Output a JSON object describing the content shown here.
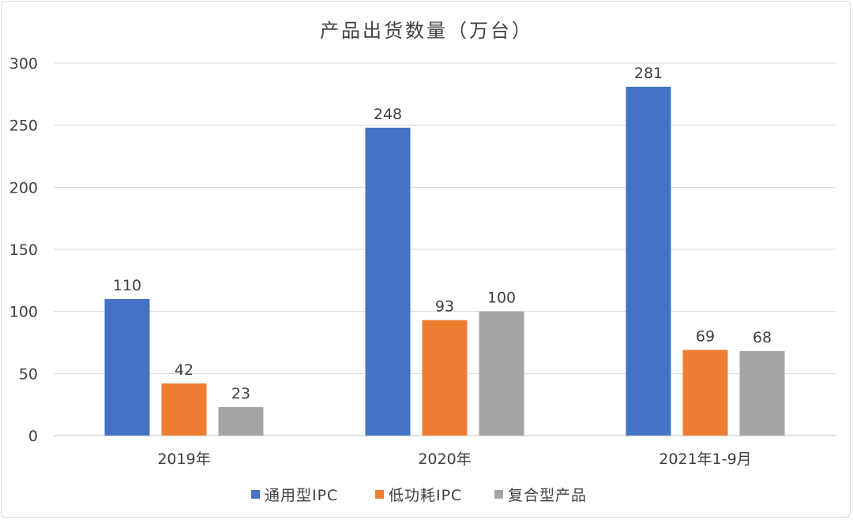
{
  "chart_data": {
    "type": "bar",
    "title": "产品出货数量（万台）",
    "categories": [
      "2019年",
      "2020年",
      "2021年1-9月"
    ],
    "series": [
      {
        "name": "通用型IPC",
        "values": [
          110,
          248,
          281
        ],
        "color": "#4472C4"
      },
      {
        "name": "低功耗IPC",
        "values": [
          42,
          93,
          69
        ],
        "color": "#ED7D31"
      },
      {
        "name": "复合型产品",
        "values": [
          23,
          100,
          68
        ],
        "color": "#A5A5A5"
      }
    ],
    "xlabel": "",
    "ylabel": "",
    "ylim": [
      0,
      300
    ],
    "yticks": [
      0,
      50,
      100,
      150,
      200,
      250,
      300
    ],
    "grid": true,
    "legend_position": "bottom",
    "data_labels": true
  }
}
